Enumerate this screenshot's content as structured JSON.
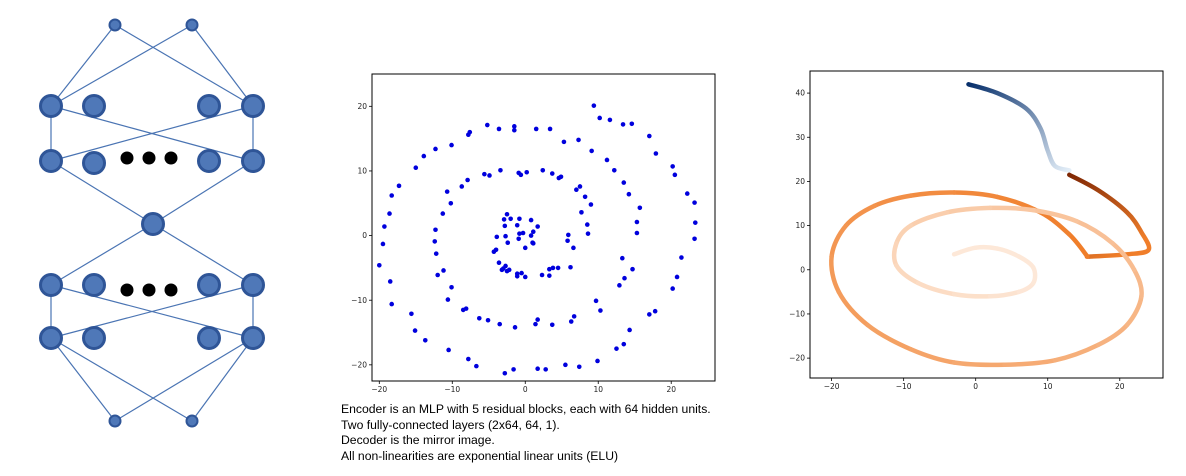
{
  "colors": {
    "node_fill": "#4f78b8",
    "node_stroke": "#2f5597",
    "edge": "#4a74b3",
    "dots": "#000000",
    "scatter_point": "#0000dd",
    "axis": "#000000",
    "path_blue_dark": "#08306b",
    "path_blue_light": "#e3eef8",
    "path_orange_dark": "#7f2704",
    "path_orange_mid": "#f07e2a",
    "path_orange_light": "#fde8d8"
  },
  "caption": [
    "Encoder is an MLP with 5 residual blocks, each with 64 hidden units.",
    "Two fully-connected layers (2x64, 64, 1).",
    "Decoder is the mirror image.",
    "All non-linearities are exponential linear units (ELU)"
  ],
  "chart_data": [
    {
      "type": "scatter",
      "title": "",
      "xlabel": "",
      "ylabel": "",
      "xlim": [
        -21,
        26
      ],
      "ylim": [
        -22.5,
        25
      ],
      "xticks": [
        -20,
        -10,
        0,
        10,
        20
      ],
      "yticks": [
        -20,
        -10,
        0,
        10,
        20
      ],
      "xtick_labels": [
        "−20",
        "−10",
        "0",
        "10",
        "20"
      ],
      "ytick_labels": [
        "−20",
        "−10",
        "0",
        "10",
        "20"
      ],
      "grid": false,
      "series": [
        {
          "x": [
            -0.3,
            -0.8,
            1.7,
            1.1,
            -2.4,
            0.8,
            1.0,
            0.0,
            -0.9,
            1.1,
            -0.8,
            -1.1,
            0.8,
            -2.0,
            -2.5,
            -2.9,
            -2.8,
            -2.7,
            -3.9,
            -4.0,
            -4.3,
            -3.0,
            -3.6,
            -2.7,
            -2.2,
            -3.2,
            -2.5,
            -1.1,
            -1.1,
            -0.5,
            0.0,
            2.3,
            3.3,
            3.3,
            3.8,
            4.5,
            6.2,
            6.6,
            5.8,
            5.9,
            8.6,
            8.5,
            7.7,
            9.0,
            8.2,
            7.0,
            7.5,
            4.6,
            4.9,
            3.7,
            2.4,
            0.2,
            -0.6,
            -0.9,
            -3.4,
            -4.9,
            -5.6,
            -7.9,
            -8.7,
            -10.7,
            -10.2,
            -11.3,
            -12.3,
            -12.4,
            -12.2,
            -11.2,
            -12.0,
            -10.1,
            -10.6,
            -8.1,
            -8.5,
            -6.3,
            -5.1,
            -3.5,
            -1.4,
            1.4,
            1.7,
            3.7,
            6.7,
            6.3,
            10.3,
            9.7,
            12.9,
            13.6,
            14.7,
            13.3,
            15.3,
            15.3,
            15.7,
            14.2,
            13.5,
            12.2,
            11.2,
            9.1,
            7.3,
            5.3,
            3.4,
            1.5,
            -1.5,
            -1.5,
            -3.6,
            -5.2,
            -7.8,
            -7.6,
            -10.1,
            -12.3,
            -13.9,
            -15.0,
            -17.3,
            -18.3,
            -18.6,
            -19.3,
            -19.5,
            -20.0,
            -18.5,
            -18.3,
            -15.6,
            -15.1,
            -13.7,
            -10.5,
            -7.8,
            -6.7,
            -2.8,
            -1.6,
            1.7,
            2.8,
            5.5,
            7.4,
            9.9,
            12.5,
            13.5,
            14.3,
            17.0,
            17.8,
            20.2,
            20.8,
            21.4,
            23.2,
            23.3,
            23.2,
            22.2,
            20.5,
            20.2,
            17.9,
            17.0,
            14.6,
            13.4,
            11.6,
            10.2,
            9.4
          ],
          "y": [
            0.4,
            2.6,
            1.4,
            0.6,
            -1.1,
            0.0,
            -1.1,
            -1.9,
            -0.5,
            -1.2,
            0.3,
            1.6,
            2.4,
            2.6,
            3.3,
            2.5,
            1.5,
            -0.1,
            -0.2,
            -2.2,
            -2.5,
            -5.1,
            -4.2,
            -4.7,
            -5.3,
            -5.3,
            -5.5,
            -6.3,
            -5.9,
            -5.8,
            -6.4,
            -6.1,
            -6.2,
            -5.2,
            -5.0,
            -5.0,
            -4.9,
            -1.9,
            -0.8,
            0.1,
            0.3,
            1.7,
            3.6,
            4.8,
            6.0,
            7.1,
            7.6,
            8.9,
            9.1,
            9.6,
            10.1,
            9.8,
            9.4,
            9.7,
            10.1,
            9.3,
            9.5,
            8.6,
            7.6,
            6.8,
            5.0,
            3.4,
            0.9,
            -0.9,
            -2.8,
            -5.4,
            -6.1,
            -8.0,
            -9.9,
            -11.3,
            -11.5,
            -12.8,
            -13.1,
            -13.7,
            -14.2,
            -13.7,
            -13.0,
            -13.8,
            -12.5,
            -13.3,
            -11.6,
            -10.1,
            -7.7,
            -6.6,
            -5.2,
            -3.5,
            0.4,
            2.1,
            4.3,
            6.4,
            8.2,
            10.1,
            11.7,
            13.1,
            14.8,
            14.5,
            16.5,
            16.5,
            16.3,
            16.9,
            16.5,
            17.1,
            15.6,
            16.0,
            14.0,
            13.4,
            12.3,
            10.5,
            7.7,
            6.2,
            3.4,
            1.4,
            -1.3,
            -4.6,
            -7.1,
            -10.6,
            -12.1,
            -14.7,
            -16.2,
            -17.7,
            -19.1,
            -20.2,
            -21.3,
            -20.7,
            -20.6,
            -20.7,
            -20.0,
            -20.3,
            -19.4,
            -17.5,
            -16.8,
            -14.6,
            -12.2,
            -11.7,
            -8.2,
            -6.4,
            -3.4,
            -0.5,
            2.0,
            5.1,
            6.5,
            9.4,
            10.7,
            12.7,
            15.4,
            17.3,
            17.2,
            17.9,
            18.2,
            20.1
          ]
        }
      ]
    },
    {
      "type": "line",
      "title": "",
      "xlabel": "",
      "ylabel": "",
      "xlim": [
        -23,
        26
      ],
      "ylim": [
        -24.5,
        45
      ],
      "xticks": [
        -20,
        -10,
        0,
        10,
        20
      ],
      "yticks": [
        -20,
        -10,
        0,
        10,
        20,
        30,
        40
      ],
      "xtick_labels": [
        "−20",
        "−10",
        "0",
        "10",
        "20"
      ],
      "ytick_labels": [
        "−20",
        "−10",
        "0",
        "10",
        "20",
        "30",
        "40"
      ],
      "grid": false,
      "series": [
        {
          "x": [
            -1,
            3,
            7,
            9,
            10,
            11,
            13
          ],
          "y": [
            42,
            40,
            36.5,
            32,
            27,
            23.5,
            22.5
          ]
        },
        {
          "x": [
            13,
            17,
            21,
            23,
            24,
            21,
            16,
            15.5
          ],
          "y": [
            21.5,
            18,
            13,
            8.5,
            4.5,
            3.5,
            3.0,
            3.0
          ]
        },
        {
          "x": [
            15.5,
            13,
            9,
            3,
            -3,
            -9,
            -14,
            -18,
            -20,
            -19,
            -15,
            -9,
            -3,
            4,
            11,
            17,
            21,
            23,
            22,
            19,
            14,
            8,
            2,
            -4,
            -9,
            -11,
            -11,
            -8,
            -3,
            2,
            6,
            8,
            8,
            6,
            3,
            0,
            -3
          ],
          "y": [
            3.0,
            8,
            13,
            16.5,
            17.5,
            16.8,
            14.5,
            10,
            3,
            -5,
            -12.5,
            -18,
            -21,
            -21.5,
            -20.5,
            -17,
            -12.5,
            -6,
            0,
            6,
            11,
            13.5,
            14,
            13,
            10,
            6,
            1,
            -3,
            -5.5,
            -6,
            -5,
            -3,
            0.5,
            3,
            4.8,
            5,
            3.5
          ]
        }
      ]
    }
  ]
}
